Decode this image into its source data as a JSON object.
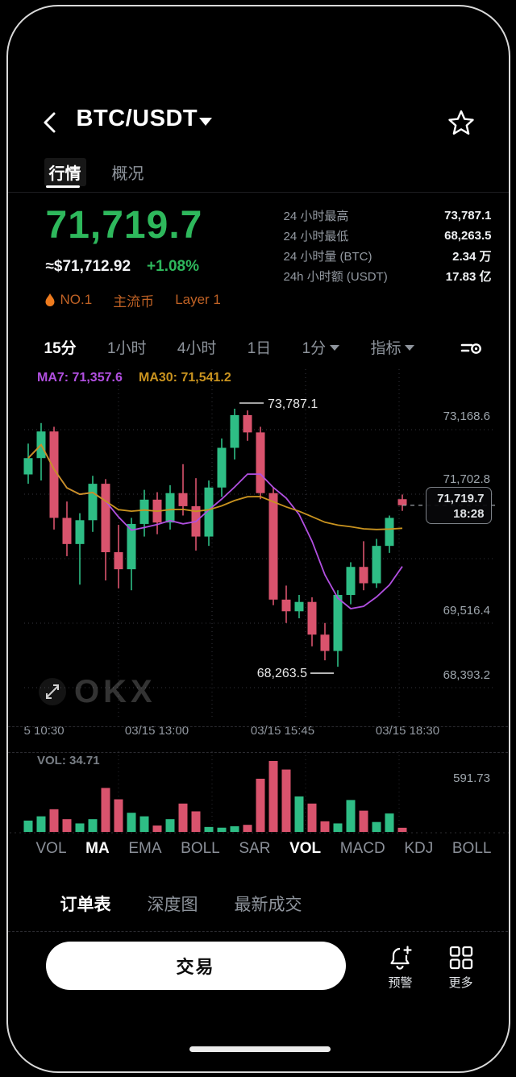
{
  "header": {
    "title": "BTC/USDT",
    "tabs": [
      {
        "label": "行情",
        "active": true
      },
      {
        "label": "概况",
        "active": false
      }
    ]
  },
  "ticker": {
    "price": "71,719.7",
    "usd_approx": "≈$71,712.92",
    "change": "+1.08%",
    "tags": [
      "NO.1",
      "主流币",
      "Layer 1"
    ]
  },
  "stats": [
    {
      "label": "24 小时最高",
      "value": "73,787.1"
    },
    {
      "label": "24 小时最低",
      "value": "68,263.5"
    },
    {
      "label": "24 小时量 (BTC)",
      "value": "2.34 万"
    },
    {
      "label": "24h 小时额 (USDT)",
      "value": "17.83 亿"
    }
  ],
  "timeframes": [
    {
      "label": "15分",
      "active": true,
      "dropdown": false
    },
    {
      "label": "1小时",
      "active": false,
      "dropdown": false
    },
    {
      "label": "4小时",
      "active": false,
      "dropdown": false
    },
    {
      "label": "1日",
      "active": false,
      "dropdown": false
    },
    {
      "label": "1分",
      "active": false,
      "dropdown": true
    },
    {
      "label": "指标",
      "active": false,
      "dropdown": true
    }
  ],
  "chart_data": {
    "type": "candlestick",
    "symbol": "BTC/USDT",
    "interval_selected": "15分",
    "ma7_label": "MA7: 71,357.6",
    "ma30_label": "MA30: 71,541.2",
    "high_annotation": {
      "value": 73787.1,
      "label": "73,787.1"
    },
    "low_annotation": {
      "value": 68263.5,
      "label": "68,263.5"
    },
    "last_price": {
      "value": 71719.7,
      "label": "71,719.7",
      "time": "18:28"
    },
    "y_axis_labels": [
      "73,168.6",
      "71,702.8",
      "69,516.4",
      "68,393.2"
    ],
    "x_axis_labels": [
      "5 10:30",
      "03/15 13:00",
      "03/15 15:45",
      "03/15 18:30"
    ],
    "watermark": "OKX",
    "candles": [
      [
        72380,
        73040,
        72180,
        72730
      ],
      [
        72730,
        73480,
        72250,
        73300
      ],
      [
        73300,
        73400,
        71200,
        71450
      ],
      [
        71450,
        71800,
        70630,
        70890
      ],
      [
        70890,
        71550,
        70020,
        71400
      ],
      [
        71400,
        72350,
        71150,
        72180
      ],
      [
        72180,
        72280,
        70110,
        70715
      ],
      [
        70715,
        71300,
        69940,
        70350
      ],
      [
        70350,
        71450,
        69900,
        71320
      ],
      [
        71320,
        72050,
        71050,
        71840
      ],
      [
        71840,
        72000,
        71100,
        71350
      ],
      [
        71350,
        72150,
        71200,
        71980
      ],
      [
        71980,
        72600,
        71500,
        71700
      ],
      [
        71700,
        72300,
        70750,
        71050
      ],
      [
        71050,
        72250,
        70850,
        72100
      ],
      [
        72100,
        73150,
        71900,
        72950
      ],
      [
        72950,
        73787.1,
        72700,
        73650
      ],
      [
        73650,
        73750,
        73100,
        73280
      ],
      [
        73280,
        73400,
        71850,
        71980
      ],
      [
        71980,
        72100,
        69580,
        69700
      ],
      [
        69700,
        70000,
        69200,
        69450
      ],
      [
        69450,
        69800,
        69300,
        69650
      ],
      [
        69650,
        69750,
        68700,
        68950
      ],
      [
        68950,
        69200,
        68400,
        68600
      ],
      [
        68600,
        69900,
        68263.5,
        69800
      ],
      [
        69800,
        70500,
        69600,
        70400
      ],
      [
        70400,
        70950,
        69900,
        70050
      ],
      [
        70050,
        71000,
        69950,
        70850
      ],
      [
        70850,
        71500,
        70700,
        71450
      ],
      [
        71850,
        71950,
        71600,
        71719.7
      ]
    ],
    "volume": {
      "label": "VOL: 34.71",
      "current": 34.71,
      "axis_max_label": "591.73",
      "axis_max": 591.73,
      "values": [
        94.7,
        130.2,
        189.4,
        106.5,
        71.0,
        106.5,
        366.9,
        272.2,
        159.8,
        130.2,
        53.3,
        106.5,
        236.7,
        171.6,
        41.4,
        35.5,
        47.3,
        59.2,
        443.8,
        591.73,
        520.7,
        295.9,
        236.7,
        88.8,
        71.0,
        266.3,
        177.5,
        82.8,
        153.8,
        34.71
      ]
    },
    "colors": {
      "up": "#2ebd85",
      "down": "#d9536d",
      "ma7": "#b14fe0",
      "ma30": "#c9931f",
      "price_green": "#2eb85c",
      "tag_orange": "#c06225",
      "flame_orange": "#ee7b1e"
    }
  },
  "indicators": [
    {
      "label": "VOL",
      "active": false
    },
    {
      "label": "MA",
      "active": true
    },
    {
      "label": "EMA",
      "active": false
    },
    {
      "label": "BOLL",
      "active": false
    },
    {
      "label": "SAR",
      "active": false
    },
    {
      "label": "VOL",
      "active": true
    },
    {
      "label": "MACD",
      "active": false
    },
    {
      "label": "KDJ",
      "active": false
    },
    {
      "label": "BOLL",
      "active": false
    }
  ],
  "bottom_tabs": [
    {
      "label": "订单表",
      "active": true
    },
    {
      "label": "深度图",
      "active": false
    },
    {
      "label": "最新成交",
      "active": false
    }
  ],
  "footer": {
    "trade_label": "交易",
    "alert_label": "预警",
    "more_label": "更多"
  }
}
